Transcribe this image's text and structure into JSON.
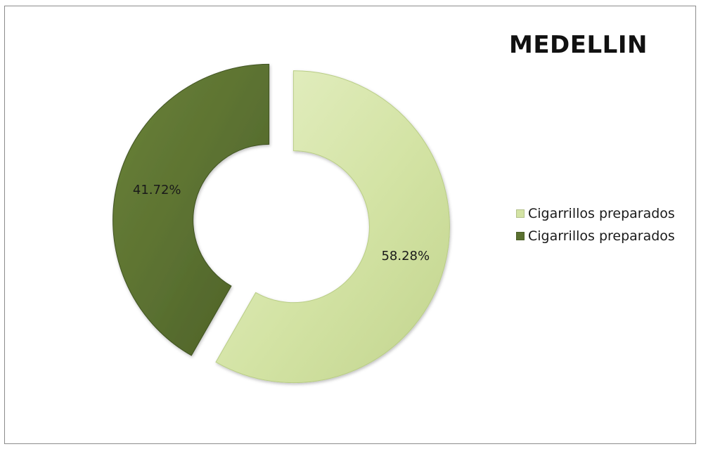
{
  "chart_data": {
    "type": "pie",
    "variant": "doughnut",
    "title": "MEDELLIN",
    "slices": [
      {
        "label": "Cigarrillos preparados",
        "value": 58.28,
        "display": "58.28%",
        "color": "#d3e3a4",
        "edge_color": "#b9cd86"
      },
      {
        "label": "Cigarrillos preparados",
        "value": 41.72,
        "display": "41.72%",
        "color": "#5a7030",
        "edge_color": "#3f5220"
      }
    ],
    "legend": {
      "placement": "right",
      "entries": [
        "Cigarrillos preparados",
        "Cigarrillos preparados"
      ]
    },
    "exploded": true,
    "start": "top, clockwise"
  }
}
